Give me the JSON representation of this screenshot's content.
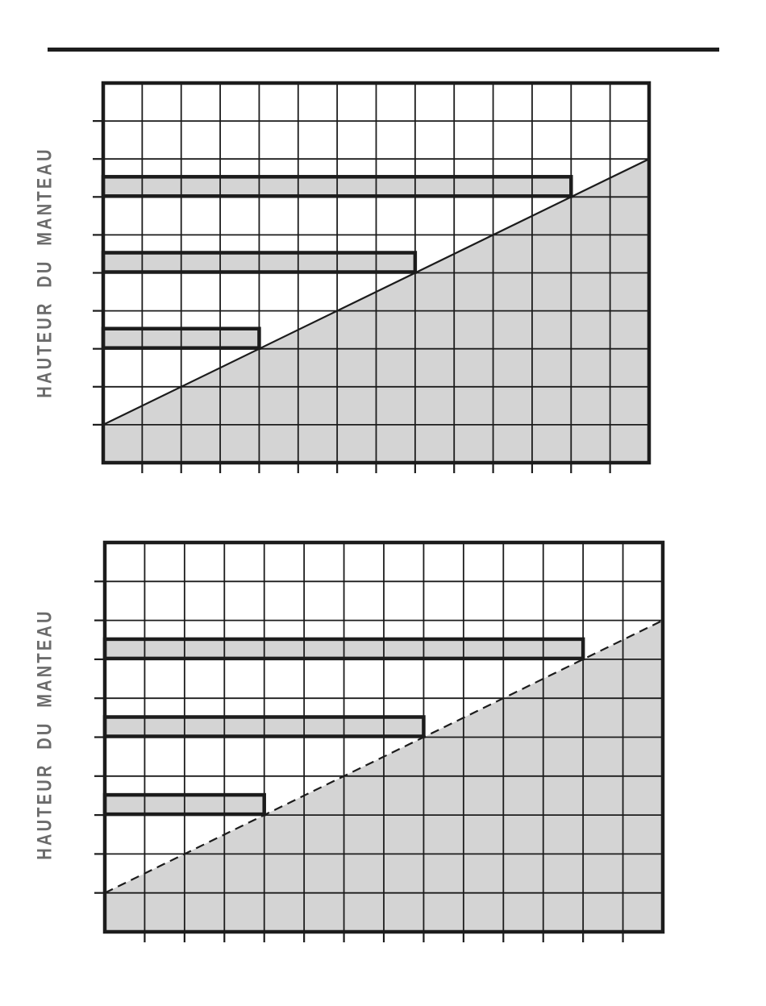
{
  "page": {
    "background": "#ffffff",
    "header_rule_color": "#1d1d1d"
  },
  "colors": {
    "line": "#1c1c1c",
    "shade_fill": "#d4d4d4",
    "bar_fill": "#d4d4d4",
    "label_text": "#6b6b6b"
  },
  "chart_data": [
    {
      "id": "top-chart",
      "type": "area",
      "title": "",
      "xlabel": "",
      "ylabel": "HAUTEUR DU MANTEAU",
      "x_tick_labels": [],
      "y_tick_labels": [],
      "grid": {
        "cols": 14,
        "rows": 10,
        "grid_on": true,
        "ticks_left_rows": true,
        "ticks_bottom_cols": true
      },
      "diagonal": {
        "from": {
          "col": 0,
          "row": 9
        },
        "to": {
          "col": 14,
          "row": 2
        },
        "style": "solid"
      },
      "shaded_region": "below-diagonal",
      "bars": [
        {
          "bottom_row": 3,
          "cols": 12
        },
        {
          "bottom_row": 5,
          "cols": 8
        },
        {
          "bottom_row": 7,
          "cols": 4
        }
      ]
    },
    {
      "id": "bottom-chart",
      "type": "area",
      "title": "",
      "xlabel": "",
      "ylabel": "HAUTEUR DU MANTEAU",
      "x_tick_labels": [],
      "y_tick_labels": [],
      "grid": {
        "cols": 14,
        "rows": 10,
        "grid_on": true,
        "ticks_left_rows": true,
        "ticks_bottom_cols": true
      },
      "diagonal": {
        "from": {
          "col": 0,
          "row": 9
        },
        "to": {
          "col": 14,
          "row": 2
        },
        "style": "dashed"
      },
      "shaded_region": "below-diagonal",
      "bars": [
        {
          "bottom_row": 3,
          "cols": 12
        },
        {
          "bottom_row": 5,
          "cols": 8
        },
        {
          "bottom_row": 7,
          "cols": 4
        }
      ]
    }
  ]
}
